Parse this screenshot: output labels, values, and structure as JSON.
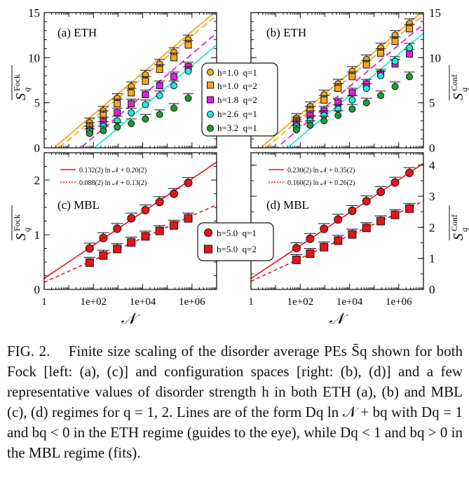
{
  "figure": {
    "panels": {
      "a": {
        "label": "(a) ETH",
        "ylabel": "S_q^Fock"
      },
      "b": {
        "label": "(b) ETH",
        "ylabel": "S_q^Conf"
      },
      "c": {
        "label": "(c) MBL",
        "ylabel": "S_q^Fock"
      },
      "d": {
        "label": "(d) MBL",
        "ylabel": "S_q^Conf"
      }
    },
    "xlabel": "𝒩",
    "eth_legend": [
      "h=1.0  q=1",
      "h=1.0  q=2",
      "h=1.8  q=2",
      "h=2.6  q=1",
      "h=3.2  q=1"
    ],
    "mbl_legend": [
      "h=5.0  q=1",
      "h=5.0  q=2"
    ],
    "fit_c": [
      "0.132(2) ln 𝒩 + 0.20(2)",
      "0.088(2) ln 𝒩 + 0.13(2)"
    ],
    "fit_d": [
      "0.230(2) ln 𝒩 + 0.35(2)",
      "0.160(2) ln 𝒩 + 0.26(2)"
    ],
    "colors": {
      "orange": "#f5a623",
      "magenta": "#e020e0",
      "cyan": "#22e8e8",
      "green": "#1e9e2e",
      "red": "#e8121a"
    }
  },
  "chart_data": [
    {
      "type": "scatter",
      "title": "(a) ETH",
      "xlabel": "𝒩",
      "ylabel": "S_q^Fock",
      "xscale": "log",
      "xlim": [
        1,
        10000000
      ],
      "ylim": [
        0,
        15
      ],
      "xticks": [
        "1",
        "1e+02",
        "1e+04",
        "1e+06"
      ],
      "yticks": [
        "0",
        "5",
        "10",
        "15"
      ],
      "x": [
        70,
        252,
        924,
        3432,
        12870,
        48620,
        184756,
        705432
      ],
      "series": [
        {
          "name": "h=1.0 q=1",
          "color": "#f5a623",
          "marker": "circle",
          "values": [
            2.8,
            4.1,
            5.5,
            6.8,
            8.1,
            9.3,
            10.6,
            12.0
          ],
          "fit": [
            1,
            -0.9
          ]
        },
        {
          "name": "h=1.0 q=2",
          "color": "#f5a623",
          "marker": "square",
          "values": [
            2.3,
            3.6,
            4.9,
            6.1,
            7.4,
            8.7,
            10.0,
            11.4
          ],
          "fit": [
            1,
            -1.4
          ]
        },
        {
          "name": "h=1.8 q=2",
          "color": "#e020e0",
          "marker": "square",
          "values": [
            1.9,
            2.9,
            3.9,
            4.9,
            5.9,
            6.9,
            7.9,
            9.0
          ],
          "fit": [
            1,
            -3.4
          ]
        },
        {
          "name": "h=2.6 q=1",
          "color": "#22e8e8",
          "marker": "circle",
          "values": [
            1.9,
            2.4,
            3.0,
            3.9,
            4.8,
            5.8,
            6.9,
            8.5
          ],
          "fit": [
            1,
            -4.7
          ]
        },
        {
          "name": "h=3.2 q=1",
          "color": "#1e9e2e",
          "marker": "circle",
          "values": [
            1.6,
            1.9,
            2.3,
            2.7,
            3.2,
            3.7,
            4.4,
            5.5
          ]
        }
      ]
    },
    {
      "type": "scatter",
      "title": "(b) ETH",
      "xlabel": "𝒩",
      "ylabel": "S_q^Conf",
      "xscale": "log",
      "xlim": [
        1,
        10000000
      ],
      "ylim": [
        0,
        15
      ],
      "xticks": [
        "1",
        "1e+02",
        "1e+04",
        "1e+06"
      ],
      "yticks": [
        "0",
        "5",
        "10",
        "15"
      ],
      "x": [
        70,
        252,
        924,
        3432,
        12870,
        48620,
        184756,
        705432,
        2704156
      ],
      "series": [
        {
          "name": "h=1.0 q=1",
          "color": "#f5a623",
          "marker": "circle",
          "values": [
            3.3,
            4.6,
            5.9,
            7.1,
            8.5,
            9.8,
            11.1,
            12.5,
            13.8
          ],
          "fit": [
            1,
            -0.9
          ]
        },
        {
          "name": "h=1.0 q=2",
          "color": "#f5a623",
          "marker": "square",
          "values": [
            2.9,
            4.1,
            5.3,
            6.6,
            7.9,
            9.2,
            10.5,
            11.8,
            13.2
          ],
          "fit": [
            1,
            -1.4
          ]
        },
        {
          "name": "h=1.8 q=2",
          "color": "#e020e0",
          "marker": "square",
          "values": [
            2.6,
            3.6,
            4.1,
            5.0,
            6.1,
            7.1,
            8.2,
            9.3,
            10.4
          ],
          "fit": [
            1,
            -2.4
          ]
        },
        {
          "name": "h=2.6 q=1",
          "color": "#22e8e8",
          "marker": "circle",
          "values": [
            2.4,
            3.0,
            3.6,
            4.3,
            5.3,
            6.6,
            8.0,
            9.6,
            11.1
          ],
          "fit": [
            1,
            -3.4
          ]
        },
        {
          "name": "h=3.2 q=1",
          "color": "#1e9e2e",
          "marker": "circle",
          "values": [
            2.0,
            2.5,
            3.0,
            3.6,
            4.3,
            5.0,
            5.8,
            6.8,
            7.9
          ]
        }
      ]
    },
    {
      "type": "scatter",
      "title": "(c) MBL",
      "xlabel": "𝒩",
      "ylabel": "S_q^Fock",
      "xscale": "log",
      "xlim": [
        1,
        10000000
      ],
      "ylim": [
        0,
        2.5
      ],
      "xticks": [
        "1",
        "1e+02",
        "1e+04",
        "1e+06"
      ],
      "yticks": [
        "0",
        "1",
        "2"
      ],
      "x": [
        70,
        252,
        924,
        3432,
        12870,
        48620,
        184756,
        705432
      ],
      "series": [
        {
          "name": "h=5.0 q=1",
          "color": "#e8121a",
          "marker": "circle",
          "values": [
            0.75,
            0.94,
            1.11,
            1.3,
            1.45,
            1.6,
            1.75,
            1.95
          ],
          "fit": [
            0.132,
            0.2
          ]
        },
        {
          "name": "h=5.0 q=2",
          "color": "#e8121a",
          "marker": "square",
          "values": [
            0.49,
            0.62,
            0.74,
            0.86,
            0.97,
            1.07,
            1.17,
            1.3
          ],
          "fit": [
            0.088,
            0.13
          ]
        }
      ]
    },
    {
      "type": "scatter",
      "title": "(d) MBL",
      "xlabel": "𝒩",
      "ylabel": "S_q^Conf",
      "xscale": "log",
      "xlim": [
        1,
        10000000
      ],
      "ylim": [
        0,
        4.4
      ],
      "xticks": [
        "1",
        "1e+02",
        "1e+04",
        "1e+06"
      ],
      "yticks": [
        "0",
        "1",
        "2",
        "3",
        "4"
      ],
      "x": [
        70,
        252,
        924,
        3432,
        12870,
        48620,
        184756,
        705432,
        2704156
      ],
      "series": [
        {
          "name": "h=5.0 q=1",
          "color": "#e8121a",
          "marker": "circle",
          "values": [
            1.33,
            1.63,
            1.95,
            2.25,
            2.53,
            2.84,
            3.14,
            3.44,
            3.75
          ],
          "fit": [
            0.23,
            0.35
          ]
        },
        {
          "name": "h=5.0 q=2",
          "color": "#e8121a",
          "marker": "square",
          "values": [
            0.95,
            1.15,
            1.36,
            1.57,
            1.77,
            1.98,
            2.2,
            2.4,
            2.6
          ],
          "fit": [
            0.16,
            0.26
          ]
        }
      ]
    }
  ],
  "caption": {
    "prefix": "FIG. 2.",
    "text": "Finite size scaling of the disorder average PEs S̄q shown for both Fock [left: (a), (c)] and configuration spaces [right: (b), (d)] and a few representative values of disorder strength h in both ETH (a), (b) and MBL (c), (d) regimes for q = 1, 2. Lines are of the form Dq ln 𝒩 + bq with Dq = 1 and bq < 0 in the ETH regime (guides to the eye), while Dq < 1 and bq > 0 in the MBL regime (fits)."
  }
}
